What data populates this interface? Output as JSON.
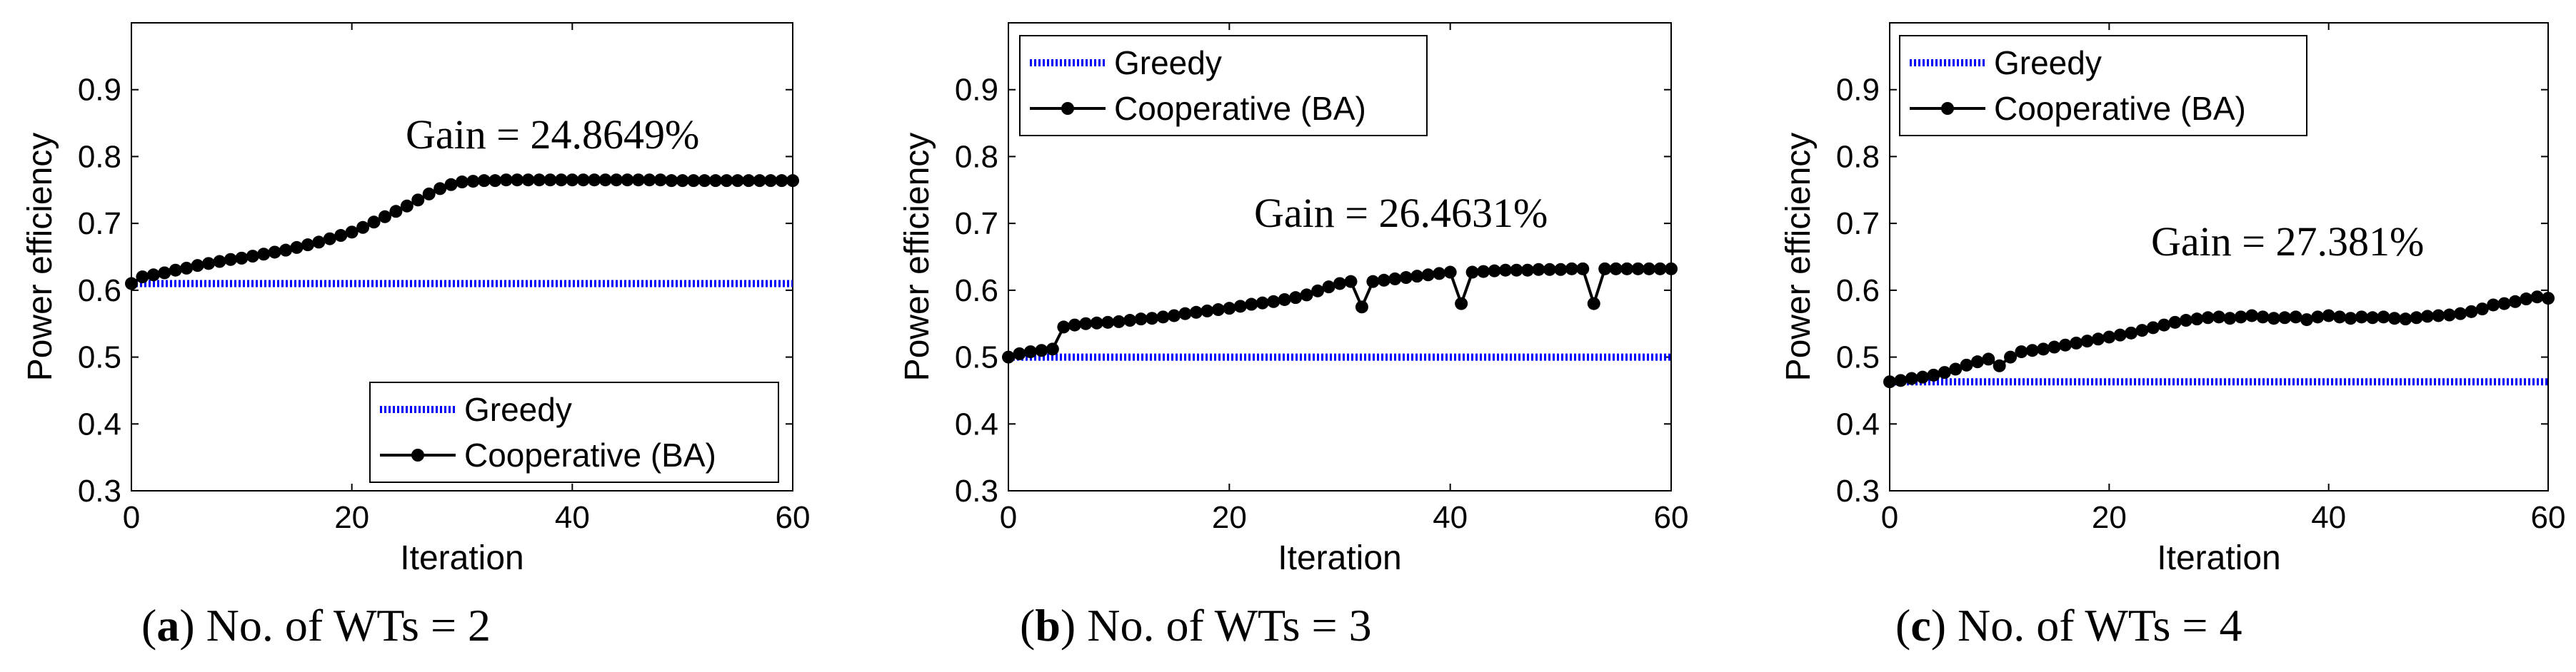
{
  "chart_data": [
    {
      "type": "line",
      "caption_letter": "a",
      "caption_text": "No. of WTs = 2",
      "xlabel": "Iteration",
      "ylabel": "Power efficiency",
      "xlim": [
        0,
        60
      ],
      "ylim": [
        0.3,
        1.0
      ],
      "xticks": [
        "0",
        "20",
        "40",
        "60"
      ],
      "yticks": [
        "0.3",
        "0.4",
        "0.5",
        "0.6",
        "0.7",
        "0.8",
        "0.9"
      ],
      "legend_position": "bottom-right",
      "annotation": "Gain = 24.8649%",
      "series": [
        {
          "name": "Greedy",
          "color": "#0000ff",
          "style": "dotted",
          "x": [
            0,
            60
          ],
          "values": [
            0.61,
            0.61
          ]
        },
        {
          "name": "Cooperative (BA)",
          "color": "#000000",
          "style": "solid-marker",
          "x": [
            0,
            1,
            2,
            3,
            4,
            5,
            6,
            7,
            8,
            9,
            10,
            11,
            12,
            13,
            14,
            15,
            16,
            17,
            18,
            19,
            20,
            21,
            22,
            23,
            24,
            25,
            26,
            27,
            28,
            29,
            30,
            31,
            32,
            33,
            34,
            35,
            36,
            37,
            38,
            39,
            40,
            41,
            42,
            43,
            44,
            45,
            46,
            47,
            48,
            49,
            50,
            51,
            52,
            53,
            54,
            55,
            56,
            57,
            58,
            59,
            60
          ],
          "values": [
            0.61,
            0.62,
            0.623,
            0.626,
            0.63,
            0.633,
            0.637,
            0.64,
            0.643,
            0.646,
            0.648,
            0.651,
            0.654,
            0.657,
            0.66,
            0.664,
            0.668,
            0.672,
            0.677,
            0.682,
            0.687,
            0.694,
            0.702,
            0.71,
            0.718,
            0.726,
            0.735,
            0.744,
            0.752,
            0.758,
            0.762,
            0.763,
            0.764,
            0.764,
            0.765,
            0.765,
            0.765,
            0.765,
            0.765,
            0.765,
            0.765,
            0.765,
            0.765,
            0.765,
            0.765,
            0.765,
            0.765,
            0.765,
            0.765,
            0.764,
            0.764,
            0.764,
            0.764,
            0.764,
            0.764,
            0.764,
            0.764,
            0.764,
            0.764,
            0.764,
            0.764
          ]
        }
      ]
    },
    {
      "type": "line",
      "caption_letter": "b",
      "caption_text": "No. of WTs = 3",
      "xlabel": "Iteration",
      "ylabel": "Power efficiency",
      "xlim": [
        0,
        60
      ],
      "ylim": [
        0.3,
        1.0
      ],
      "xticks": [
        "0",
        "20",
        "40",
        "60"
      ],
      "yticks": [
        "0.3",
        "0.4",
        "0.5",
        "0.6",
        "0.7",
        "0.8",
        "0.9"
      ],
      "legend_position": "top-left",
      "annotation": "Gain = 26.4631%",
      "series": [
        {
          "name": "Greedy",
          "color": "#0000ff",
          "style": "dotted",
          "x": [
            0,
            60
          ],
          "values": [
            0.5,
            0.5
          ]
        },
        {
          "name": "Cooperative (BA)",
          "color": "#000000",
          "style": "solid-marker",
          "x": [
            0,
            1,
            2,
            3,
            4,
            5,
            6,
            7,
            8,
            9,
            10,
            11,
            12,
            13,
            14,
            15,
            16,
            17,
            18,
            19,
            20,
            21,
            22,
            23,
            24,
            25,
            26,
            27,
            28,
            29,
            30,
            31,
            32,
            33,
            34,
            35,
            36,
            37,
            38,
            39,
            40,
            41,
            42,
            43,
            44,
            45,
            46,
            47,
            48,
            49,
            50,
            51,
            52,
            53,
            54,
            55,
            56,
            57,
            58,
            59,
            60
          ],
          "values": [
            0.5,
            0.505,
            0.508,
            0.51,
            0.512,
            0.545,
            0.548,
            0.55,
            0.551,
            0.552,
            0.553,
            0.555,
            0.557,
            0.558,
            0.56,
            0.562,
            0.565,
            0.567,
            0.569,
            0.571,
            0.573,
            0.576,
            0.579,
            0.581,
            0.583,
            0.586,
            0.589,
            0.593,
            0.599,
            0.605,
            0.61,
            0.613,
            0.575,
            0.613,
            0.615,
            0.617,
            0.619,
            0.621,
            0.623,
            0.625,
            0.627,
            0.58,
            0.627,
            0.628,
            0.629,
            0.63,
            0.63,
            0.63,
            0.631,
            0.631,
            0.631,
            0.632,
            0.632,
            0.58,
            0.632,
            0.632,
            0.632,
            0.632,
            0.632,
            0.632,
            0.632
          ]
        }
      ]
    },
    {
      "type": "line",
      "caption_letter": "c",
      "caption_text": "No. of WTs = 4",
      "xlabel": "Iteration",
      "ylabel": "Power efficiency",
      "xlim": [
        0,
        60
      ],
      "ylim": [
        0.3,
        1.0
      ],
      "xticks": [
        "0",
        "20",
        "40",
        "60"
      ],
      "yticks": [
        "0.3",
        "0.4",
        "0.5",
        "0.6",
        "0.7",
        "0.8",
        "0.9"
      ],
      "legend_position": "top-left",
      "annotation": "Gain = 27.381%",
      "series": [
        {
          "name": "Greedy",
          "color": "#0000ff",
          "style": "dotted",
          "x": [
            0,
            60
          ],
          "values": [
            0.463,
            0.463
          ]
        },
        {
          "name": "Cooperative (BA)",
          "color": "#000000",
          "style": "solid-marker",
          "x": [
            0,
            1,
            2,
            3,
            4,
            5,
            6,
            7,
            8,
            9,
            10,
            11,
            12,
            13,
            14,
            15,
            16,
            17,
            18,
            19,
            20,
            21,
            22,
            23,
            24,
            25,
            26,
            27,
            28,
            29,
            30,
            31,
            32,
            33,
            34,
            35,
            36,
            37,
            38,
            39,
            40,
            41,
            42,
            43,
            44,
            45,
            46,
            47,
            48,
            49,
            50,
            51,
            52,
            53,
            54,
            55,
            56,
            57,
            58,
            59,
            60
          ],
          "values": [
            0.463,
            0.465,
            0.468,
            0.47,
            0.473,
            0.477,
            0.482,
            0.488,
            0.493,
            0.497,
            0.487,
            0.5,
            0.508,
            0.51,
            0.512,
            0.515,
            0.518,
            0.521,
            0.524,
            0.527,
            0.53,
            0.533,
            0.536,
            0.54,
            0.544,
            0.548,
            0.552,
            0.555,
            0.557,
            0.559,
            0.56,
            0.558,
            0.56,
            0.562,
            0.56,
            0.558,
            0.559,
            0.56,
            0.556,
            0.56,
            0.562,
            0.56,
            0.558,
            0.56,
            0.559,
            0.56,
            0.558,
            0.557,
            0.559,
            0.561,
            0.562,
            0.563,
            0.565,
            0.568,
            0.572,
            0.578,
            0.58,
            0.583,
            0.587,
            0.59,
            0.588
          ]
        }
      ]
    }
  ]
}
